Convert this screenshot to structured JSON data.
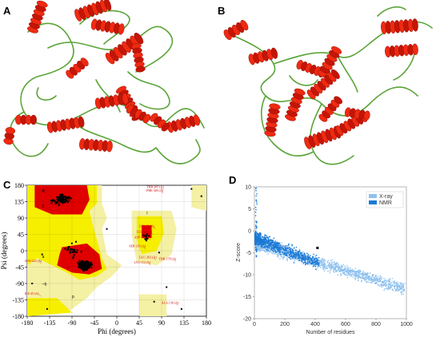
{
  "panels": {
    "a": {
      "letter": "A"
    },
    "b": {
      "letter": "B"
    },
    "c": {
      "letter": "C"
    },
    "d": {
      "letter": "D"
    }
  },
  "colors": {
    "helix": "#e8200e",
    "coil": "#5aa437",
    "core": "#e00000",
    "allowed": "#f6ef00",
    "generous": "#f4f0a4",
    "xray": "#8ec1ee",
    "nmr": "#1b79d6"
  },
  "ramachandran": {
    "xlabel": "Phi (degrees)",
    "ylabel": "Psi (degrees)",
    "xticks": [
      "-180",
      "-135",
      "-90",
      "-45",
      "0",
      "45",
      "90",
      "135",
      "180"
    ],
    "yticks": [
      "180",
      "135",
      "90",
      "45",
      "0",
      "-45",
      "-90",
      "-135",
      "-180"
    ],
    "region_labels": [
      "B",
      "b",
      "A",
      "a",
      "L",
      "l",
      "p",
      "~b"
    ],
    "residue_labels": [
      {
        "text": "THR 205 (A)"
      },
      {
        "text": "PHE 300 (A)"
      },
      {
        "text": "GLY 62 (A)"
      },
      {
        "text": "LEU 58 (A)"
      },
      {
        "text": "ASP 70 (A)"
      },
      {
        "text": "SER 119 (A)"
      },
      {
        "text": "GLU 263 (A)"
      },
      {
        "text": "LYS 112 (A)"
      },
      {
        "text": "THR 178 (A)"
      },
      {
        "text": "ALA 130 (A)"
      },
      {
        "text": "ASN 222 (A)"
      },
      {
        "text": "ILE 45 (A)"
      }
    ]
  },
  "zscore": {
    "ylabel": "Z-score",
    "xlabel": "Number of residues",
    "xticks": [
      "0",
      "200",
      "400",
      "600",
      "800",
      "1000"
    ],
    "yticks": [
      "10",
      "5",
      "0",
      "-5",
      "-10",
      "-15",
      "-20"
    ],
    "legend": [
      "X-ray",
      "NMR"
    ]
  }
}
